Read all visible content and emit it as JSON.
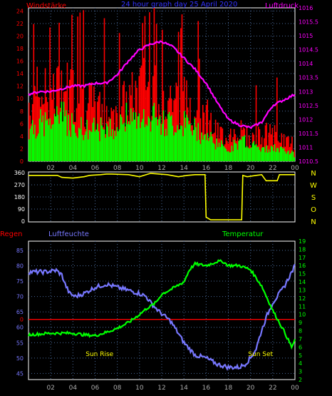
{
  "chart_data": [
    {
      "type": "bar",
      "title": "24 hour graph day  25 April 2020",
      "left_axis_title": "Windstärke",
      "right_axis_title": "Luftdruck",
      "x_tick_labels": [
        "02",
        "04",
        "06",
        "08",
        "10",
        "12",
        "14",
        "16",
        "18",
        "20",
        "22",
        "00"
      ],
      "left_ticks": [
        "0",
        "2",
        "4",
        "6",
        "8",
        "10",
        "12",
        "14",
        "16",
        "18",
        "20",
        "22",
        "24"
      ],
      "right_ticks": [
        "1010.5",
        "1011",
        "1011.5",
        "1012",
        "1012.5",
        "1013",
        "1013.5",
        "1014",
        "1014.5",
        "1015",
        "1015.5",
        "1016"
      ],
      "ylim_left": [
        0,
        24.5
      ],
      "ylim_right": [
        1010.5,
        1016
      ],
      "colors": {
        "gust": "#ff0000",
        "wind": "#00ff00",
        "pressure": "#ff00ff",
        "title": "#3333ff",
        "left_title": "#ff0000",
        "right_title": "#ff00ff"
      },
      "gust_envelope": {
        "hours": [
          0,
          1,
          2,
          3,
          4,
          5,
          6,
          7,
          8,
          9,
          10,
          11,
          12,
          13,
          14,
          15,
          16,
          17,
          18,
          19,
          20,
          21,
          22,
          23,
          24
        ],
        "values": [
          11,
          13,
          12,
          14,
          13,
          11,
          10,
          9,
          10,
          11,
          13,
          14,
          13,
          12,
          11,
          11,
          9,
          5,
          5,
          6,
          4,
          5,
          5,
          4,
          3
        ]
      },
      "wind_envelope": {
        "hours": [
          0,
          1,
          2,
          3,
          4,
          5,
          6,
          7,
          8,
          9,
          10,
          11,
          12,
          13,
          14,
          15,
          16,
          17,
          18,
          19,
          20,
          21,
          22,
          23,
          24
        ],
        "values": [
          5,
          6,
          6,
          7,
          6,
          5,
          5,
          5,
          6,
          7,
          8,
          7,
          6,
          6,
          6,
          5,
          4,
          3,
          2,
          3,
          3,
          2,
          2,
          2,
          1
        ]
      },
      "pressure": {
        "hours": [
          0,
          1,
          2,
          3,
          4,
          5,
          6,
          7,
          8,
          9,
          10,
          11,
          12,
          13,
          14,
          15,
          16,
          17,
          18,
          19,
          20,
          21,
          22,
          23,
          24
        ],
        "values": [
          1012.9,
          1013,
          1013,
          1013.1,
          1013.2,
          1013.2,
          1013.3,
          1013.3,
          1013.6,
          1014.1,
          1014.5,
          1014.7,
          1014.8,
          1014.6,
          1014.2,
          1013.8,
          1013.3,
          1012.6,
          1012.0,
          1011.8,
          1011.7,
          1011.9,
          1012.5,
          1012.7,
          1012.9
        ]
      }
    },
    {
      "type": "line",
      "left_ticks": [
        "0",
        "90",
        "180",
        "270",
        "360"
      ],
      "right_ticks": [
        "N",
        "W",
        "S",
        "O",
        "N"
      ],
      "ylim": [
        0,
        360
      ],
      "color": "#ffff00",
      "direction": {
        "hours": [
          0,
          2.6,
          3.0,
          4.0,
          5.0,
          5.5,
          6.5,
          7.0,
          7.5,
          9.0,
          10.0,
          11.0,
          12.5,
          13.5,
          14.3,
          15.0,
          15.9,
          16.0,
          16.4,
          17.0,
          19.0,
          19.2,
          19.3,
          19.7,
          20.5,
          21.0,
          21.4,
          22.4,
          22.6,
          24.0
        ],
        "values": [
          340,
          340,
          325,
          320,
          330,
          340,
          345,
          350,
          350,
          345,
          330,
          355,
          345,
          330,
          340,
          345,
          345,
          30,
          10,
          10,
          10,
          10,
          340,
          330,
          340,
          345,
          300,
          300,
          345,
          345
        ]
      }
    },
    {
      "type": "line",
      "legend": [
        "Regen",
        "Luftfeuchte",
        "Temperatur"
      ],
      "legend_colors": [
        "#ff0000",
        "#7777ff",
        "#00ff00"
      ],
      "left_ticks": [
        "45",
        "50",
        "55",
        "60",
        "65",
        "70",
        "75",
        "80",
        "85"
      ],
      "right_ticks": [
        "2",
        "3",
        "4",
        "5",
        "6",
        "7",
        "8",
        "9",
        "10",
        "11",
        "12",
        "13",
        "14",
        "15",
        "16",
        "17",
        "18",
        "19"
      ],
      "ylim_left": [
        43,
        88
      ],
      "ylim_right": [
        2,
        19
      ],
      "rain_marker_label": "0",
      "annotations": [
        {
          "text": "Sun Rise",
          "hour": 6.4
        },
        {
          "text": "Sun Set",
          "hour": 20.9
        }
      ],
      "annotation_color": "#ffff00",
      "humidity": {
        "hours": [
          0,
          1.5,
          2.5,
          3.0,
          3.3,
          3.7,
          4.2,
          5.0,
          5.5,
          6.0,
          7.0,
          8.0,
          9.0,
          10.0,
          10.6,
          11.0,
          11.8,
          12.8,
          13.5,
          14.0,
          15.0,
          16.0,
          17.0,
          18.0,
          18.5,
          19.0,
          19.5,
          20.0,
          20.5,
          21.0,
          21.5,
          22.0,
          23.0,
          24.0
        ],
        "values": [
          78,
          78,
          78.5,
          77,
          74,
          71,
          70,
          71,
          72,
          73,
          74,
          73,
          72,
          71,
          70,
          68,
          65,
          62,
          58,
          55,
          51,
          50,
          48,
          47,
          47,
          47,
          48,
          50,
          53,
          59,
          64,
          68,
          73,
          80
        ]
      },
      "temperature": {
        "hours": [
          0,
          1.0,
          2.0,
          3.0,
          4.0,
          5.0,
          6.0,
          7.0,
          8.0,
          9.0,
          10.0,
          10.7,
          11.0,
          11.5,
          12.0,
          13.0,
          14.0,
          14.5,
          15.0,
          16.0,
          17.0,
          17.5,
          18.0,
          19.0,
          20.0,
          21.0,
          22.0,
          23.0,
          23.7,
          24.0
        ],
        "values": [
          7.5,
          7.6,
          7.7,
          7.7,
          7.7,
          7.5,
          7.4,
          7.8,
          8.3,
          9.0,
          10.0,
          10.8,
          11.0,
          11.5,
          12.5,
          13.2,
          14.0,
          15.5,
          16.2,
          16.0,
          16.5,
          16.5,
          16.0,
          16.0,
          15.5,
          13.5,
          10.5,
          8.0,
          6.0,
          6.8
        ]
      }
    }
  ]
}
